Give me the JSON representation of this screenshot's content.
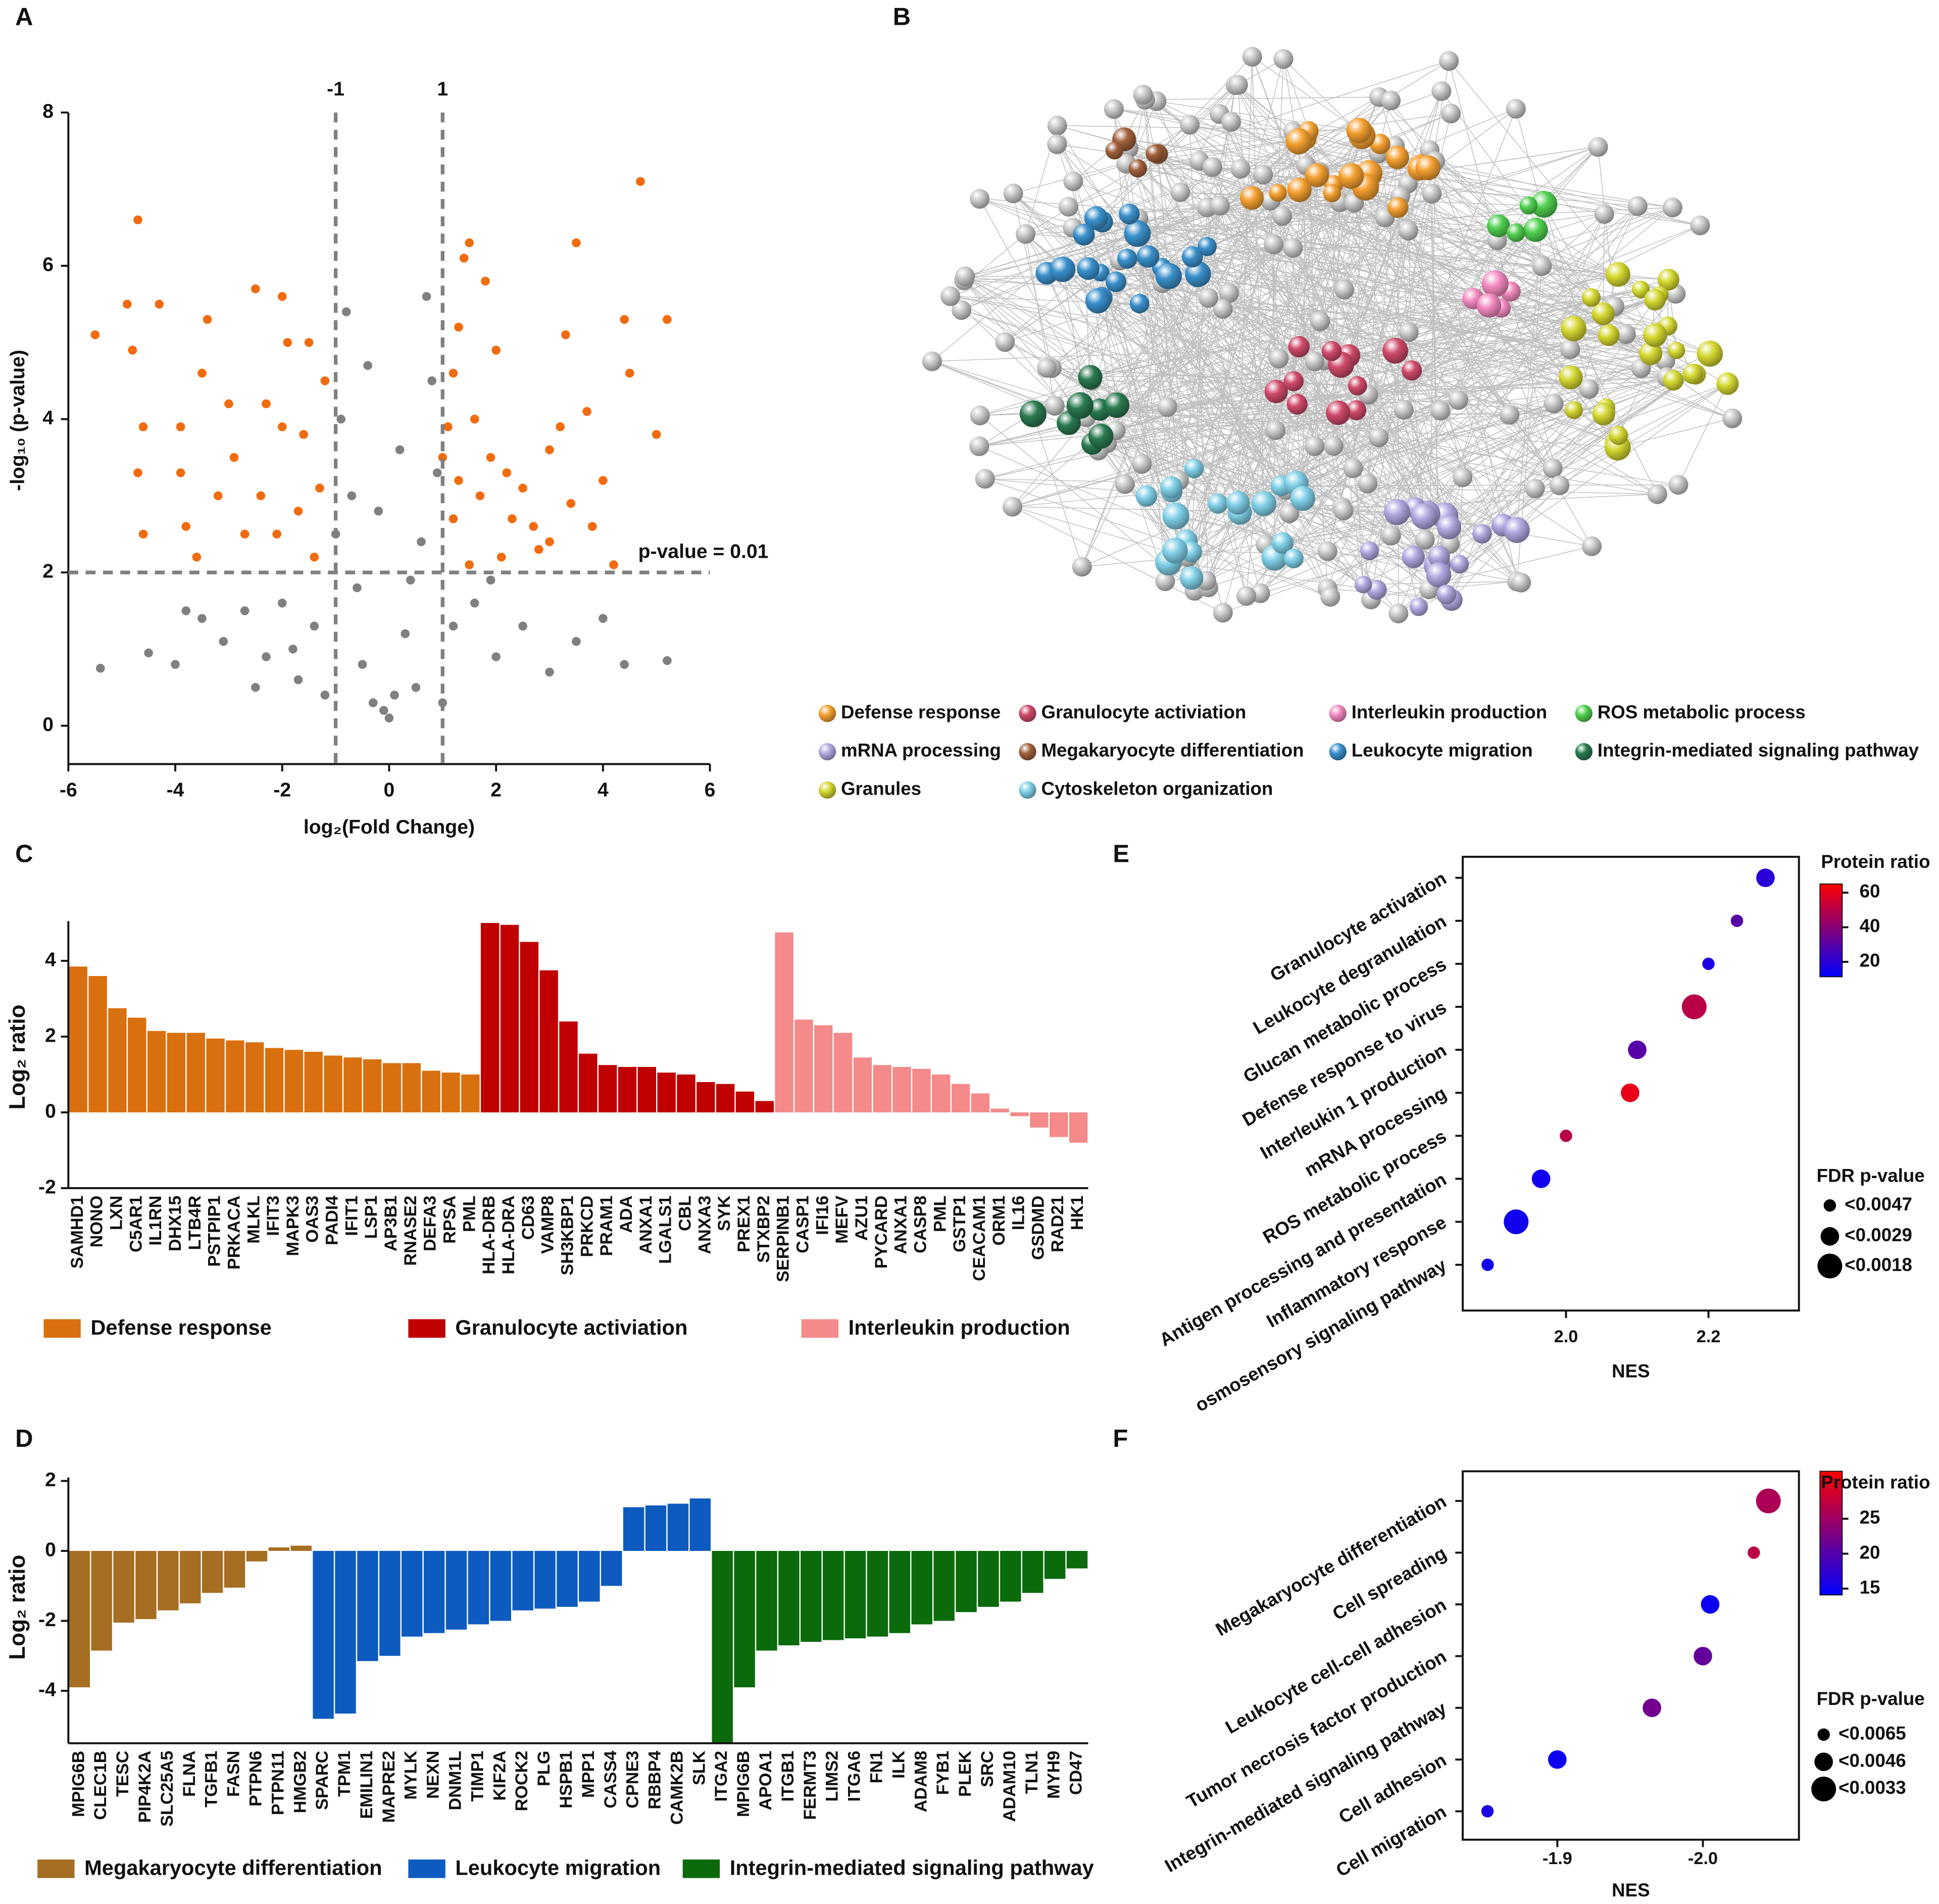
{
  "chart_data": [
    {
      "type": "scatter",
      "label": "A",
      "x_label": "log₂(Fold Change)",
      "y_label": "-log₁₀ (p-value)",
      "xlim": [
        -6,
        6
      ],
      "ylim": [
        -0.5,
        8
      ],
      "xticks": [
        -6,
        -4,
        -2,
        0,
        2,
        4,
        6
      ],
      "yticks": [
        0,
        2,
        4,
        6,
        8
      ],
      "vlines": [
        -1,
        1
      ],
      "hline": {
        "value": 2,
        "label": "p-value = 0.01"
      },
      "series": [
        {
          "color": "#f26b0f",
          "x": [
            -5.5,
            -4.7,
            -4.9,
            -4.3,
            -4.8,
            -4.6,
            -4.7,
            -4.6,
            -3.9,
            -3.9,
            -3.8,
            -3.5,
            -3.4,
            -3.0,
            -3.2,
            -2.9,
            -2.5,
            -2.7,
            -2.3,
            -2.0,
            -1.9,
            -2.0,
            -2.1,
            -1.5,
            -1.6,
            -1.3,
            -1.2,
            -1.7,
            -2.4,
            -3.6,
            -1.4,
            1.2,
            1.4,
            1.5,
            1.8,
            1.1,
            1.3,
            1.6,
            1.9,
            2.0,
            2.2,
            2.5,
            2.7,
            3.0,
            3.2,
            3.4,
            3.5,
            3.3,
            3.7,
            4.0,
            4.4,
            4.7,
            4.5,
            5.2,
            5.0,
            4.2,
            1.2,
            1.5,
            2.1,
            2.8,
            1.0,
            1.7,
            2.3,
            3.8,
            3.0,
            1.3
          ],
          "values": [
            5.1,
            6.6,
            5.5,
            5.5,
            4.9,
            3.9,
            3.3,
            2.5,
            3.9,
            3.3,
            2.6,
            4.6,
            5.3,
            4.2,
            3.0,
            3.5,
            5.7,
            2.5,
            4.2,
            5.6,
            5.0,
            3.9,
            2.5,
            5.0,
            3.8,
            3.1,
            4.5,
            2.8,
            3.0,
            2.2,
            2.2,
            4.6,
            6.1,
            6.3,
            5.8,
            3.9,
            3.2,
            4.0,
            3.5,
            4.9,
            3.3,
            3.1,
            2.6,
            3.6,
            3.9,
            2.9,
            6.3,
            5.1,
            4.1,
            3.2,
            5.3,
            7.1,
            4.6,
            5.3,
            3.8,
            2.1,
            2.7,
            2.1,
            2.2,
            2.3,
            3.5,
            3.0,
            2.7,
            2.6,
            2.4,
            5.2
          ]
        },
        {
          "color": "#808080",
          "x": [
            -5.4,
            -4.5,
            -4.0,
            -3.8,
            -3.5,
            -3.1,
            -2.7,
            -2.3,
            -2.0,
            -1.7,
            -1.4,
            -1.2,
            -1.0,
            -0.9,
            -0.8,
            -0.7,
            -0.6,
            -0.5,
            -0.3,
            -0.1,
            0,
            0.1,
            0.3,
            0.5,
            0.6,
            0.7,
            0.9,
            0.8,
            0.4,
            1.2,
            1.6,
            2.0,
            2.5,
            3.0,
            3.5,
            4.0,
            4.4,
            5.2,
            -1.8,
            -0.2,
            0.2,
            -2.5,
            1.0,
            1.9,
            -0.4
          ],
          "values": [
            0.75,
            0.95,
            0.8,
            1.5,
            1.4,
            1.1,
            1.5,
            0.9,
            1.6,
            0.6,
            1.3,
            0.4,
            2.5,
            4.0,
            5.4,
            3.0,
            1.8,
            0.8,
            0.3,
            0.2,
            0.1,
            0.4,
            1.2,
            0.5,
            2.4,
            5.6,
            3.3,
            4.5,
            1.9,
            1.3,
            1.6,
            0.9,
            1.3,
            0.7,
            1.1,
            1.4,
            0.8,
            0.85,
            1.0,
            2.8,
            3.6,
            0.5,
            0.3,
            1.9,
            4.7
          ]
        }
      ]
    },
    {
      "type": "bar",
      "label": "C",
      "y_label": "Log₂ ratio",
      "ylim": [
        -2,
        5.05
      ],
      "yticks": [
        -2,
        0,
        2,
        4
      ],
      "series": [
        {
          "name": "Defense response",
          "color": "#d9700f",
          "categories": [
            "SAMHD1",
            "NONO",
            "LXN",
            "C5AR1",
            "IL1RN",
            "DHX15",
            "LTB4R",
            "PSTPIP1",
            "PRKACA",
            "MLKL",
            "IFIT3",
            "MAPK3",
            "OAS3",
            "PADI4",
            "IFIT1",
            "LSP1",
            "AP3B1",
            "RNASE2",
            "DEFA3",
            "RPSA",
            "PML"
          ],
          "values": [
            3.85,
            3.6,
            2.75,
            2.5,
            2.15,
            2.1,
            2.1,
            1.95,
            1.9,
            1.85,
            1.7,
            1.65,
            1.6,
            1.5,
            1.45,
            1.4,
            1.3,
            1.3,
            1.1,
            1.05,
            1.0
          ]
        },
        {
          "name": "Granulocyte activiation",
          "color": "#c00000",
          "categories": [
            "HLA-DRB",
            "HLA-DRA",
            "CD63",
            "VAMP8",
            "SH3KBP1",
            "PRKCD",
            "PRAM1",
            "ADA",
            "ANXA1",
            "LGALS1",
            "CBL",
            "ANXA3",
            "SYK",
            "PREX1",
            "STXBP2"
          ],
          "values": [
            5.0,
            4.95,
            4.5,
            3.75,
            2.4,
            1.55,
            1.25,
            1.2,
            1.2,
            1.05,
            1.0,
            0.8,
            0.75,
            0.55,
            0.3
          ]
        },
        {
          "name": "Interleukin production",
          "color": "#f48a8a",
          "categories": [
            "SERPINB1",
            "CASP1",
            "IFI16",
            "MEFV",
            "AZU1",
            "PYCARD",
            "ANXA1",
            "CASP8",
            "PML",
            "GSTP1",
            "CEACAM1",
            "ORM1",
            "IL16",
            "GSDMD",
            "RAD21",
            "HK1"
          ],
          "values": [
            4.75,
            2.45,
            2.3,
            2.1,
            1.45,
            1.25,
            1.2,
            1.15,
            1.0,
            0.75,
            0.5,
            0.1,
            -0.1,
            -0.4,
            -0.65,
            -0.8
          ]
        }
      ]
    },
    {
      "type": "bar",
      "label": "D",
      "y_label": "Log₂ ratio",
      "ylim": [
        -5.5,
        2.1
      ],
      "yticks": [
        -4,
        -2,
        0,
        2
      ],
      "series": [
        {
          "name": "Megakaryocyte differentiation",
          "color": "#a66e22",
          "categories": [
            "MPIG6B",
            "CLEC1B",
            "TESC",
            "PIP4K2A",
            "SLC25A5",
            "FLNA",
            "TGFB1",
            "FASN",
            "PTPN6",
            "PTPN11",
            "HMGB2"
          ],
          "values": [
            -3.9,
            -2.85,
            -2.05,
            -1.95,
            -1.7,
            -1.5,
            -1.2,
            -1.05,
            -0.3,
            0.1,
            0.15
          ]
        },
        {
          "name": "Leukocyte migration",
          "color": "#0d5bbf",
          "categories": [
            "SPARC",
            "TPM1",
            "EMILIN1",
            "MAPRE2",
            "MYLK",
            "NEXN",
            "DNM1L",
            "TIMP1",
            "KIF2A",
            "ROCK2",
            "PLG",
            "HSPB1",
            "MPP1",
            "CASS4",
            "CPNE3",
            "RBBP4",
            "CAMK2B",
            "SLK"
          ],
          "values": [
            -4.8,
            -4.65,
            -3.15,
            -3.0,
            -2.45,
            -2.35,
            -2.25,
            -2.1,
            -2.0,
            -1.7,
            -1.65,
            -1.6,
            -1.45,
            -1.0,
            1.25,
            1.3,
            1.35,
            1.5
          ]
        },
        {
          "name": "Integrin-mediated signaling pathway",
          "color": "#0b6a0b",
          "categories": [
            "ITGA2",
            "MPIG6B",
            "APOA1",
            "ITGB1",
            "FERMT3",
            "LIMS2",
            "ITGA6",
            "FN1",
            "ILK",
            "ADAM8",
            "FYB1",
            "PLEK",
            "SRC",
            "ADAM10",
            "TLN1",
            "MYH9",
            "CD47"
          ],
          "values": [
            -5.5,
            -3.9,
            -2.85,
            -2.7,
            -2.6,
            -2.55,
            -2.5,
            -2.45,
            -2.35,
            -2.1,
            -2.0,
            -1.75,
            -1.6,
            -1.45,
            -1.2,
            -0.8,
            -0.5
          ]
        }
      ]
    },
    {
      "type": "bubble",
      "label": "E",
      "x_label": "NES",
      "xlim": [
        1.855,
        2.327
      ],
      "xticks": [
        {
          "value": 2,
          "label": "2.0"
        },
        2.2
      ],
      "categories": [
        "Granulocyte activation",
        "Leukocyte degranulation",
        "Glucan metabolic process",
        "Defense response to virus",
        "Interleukin 1 production",
        "mRNA processing",
        "ROS metabolic process",
        "Antigen processing and presentation",
        "Inflammatory response",
        "osmosensory signaling pathway"
      ],
      "values": [
        2.28,
        2.24,
        2.2,
        2.18,
        2.1,
        2.09,
        2.0,
        1.965,
        1.93,
        1.89
      ],
      "color_values": [
        20,
        30,
        18,
        50,
        30,
        60,
        50,
        15,
        15,
        15
      ],
      "sizes": [
        0.0029,
        0.0047,
        0.0047,
        0.0018,
        0.0029,
        0.0029,
        0.0047,
        0.0029,
        0.0018,
        0.0047
      ],
      "color_title": "Protein ratio",
      "colormap": [
        "#0000ff",
        "#ff0000"
      ],
      "clim": [
        11.4,
        65
      ],
      "cticks": [
        20,
        40,
        60
      ],
      "size_title": "FDR p-value",
      "size_legend": [
        {
          "value": 0.0047,
          "label": "<0.0047"
        },
        {
          "value": 0.0029,
          "label": "<0.0029"
        },
        {
          "value": 0.0018,
          "label": "<0.0018"
        }
      ]
    },
    {
      "type": "bubble",
      "label": "F",
      "x_label": "NES",
      "xlim": [
        -1.835,
        -2.066
      ],
      "xticks": [
        -1.9,
        {
          "value": -2,
          "label": "-2.0"
        }
      ],
      "categories": [
        "Megakaryocyte differentiation",
        "Cell spreading",
        "Leukocyte cell-cell adhesion",
        "Tumor necrosis factor production",
        "Integrin-mediated signaling pathway",
        "Cell adhesion",
        "Cell migration"
      ],
      "values": [
        -2.045,
        -2.035,
        -2.005,
        -2.0,
        -1.965,
        -1.9,
        -1.852
      ],
      "color_values": [
        26,
        27,
        15,
        21,
        22,
        15,
        16
      ],
      "sizes": [
        0.0033,
        0.0065,
        0.0046,
        0.0046,
        0.0046,
        0.0046,
        0.0065
      ],
      "color_title": "Protein ratio",
      "colormap": [
        "#0000ff",
        "#ff0000"
      ],
      "clim": [
        14.1,
        31.8
      ],
      "cticks": [
        15,
        20,
        25
      ],
      "size_title": "FDR p-value",
      "size_legend": [
        {
          "value": 0.0065,
          "label": "<0.0065"
        },
        {
          "value": 0.0046,
          "label": "<0.0046"
        },
        {
          "value": 0.0033,
          "label": "<0.0033"
        }
      ]
    }
  ],
  "network": {
    "label": "B",
    "legend": [
      {
        "name": "Defense response",
        "color": "#f5a030"
      },
      {
        "name": "Granulocyte activiation",
        "color": "#d04a6a"
      },
      {
        "name": "Interleukin production",
        "color": "#f48ac0"
      },
      {
        "name": "ROS metabolic process",
        "color": "#50d050"
      },
      {
        "name": "mRNA processing",
        "color": "#b0a8e0"
      },
      {
        "name": "Megakaryocyte differentiation",
        "color": "#a0603a"
      },
      {
        "name": "Leukocyte migration",
        "color": "#3a90cc"
      },
      {
        "name": "Integrin-mediated signaling pathway",
        "color": "#2a7a50"
      },
      {
        "name": "Granules",
        "color": "#d4d830"
      },
      {
        "name": "Cytoskeleton organization",
        "color": "#80d0e8"
      }
    ]
  }
}
